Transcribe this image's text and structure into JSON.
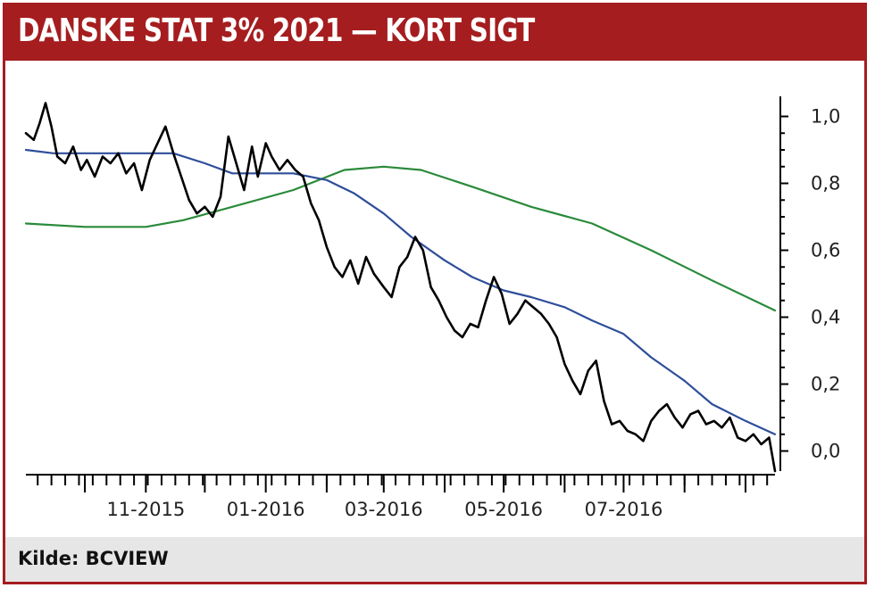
{
  "title": "DANSKE STAT 3% 2021 — KORT SIGT",
  "source": "Kilde: BCVIEW",
  "colors": {
    "brand": "#a51d1f",
    "price": "#000000",
    "ma_short": "#2e4e9a",
    "ma_long": "#2a8a3a"
  },
  "chart_data": {
    "type": "line",
    "title": "DANSKE STAT 3% 2021 — KORT SIGT",
    "xlabel": "",
    "ylabel": "",
    "x_ticks": [
      "11-2015",
      "01-2016",
      "03-2016",
      "05-2016",
      "07-2016"
    ],
    "y_ticks": [
      "1,0",
      "0,8",
      "0,6",
      "0,4",
      "0,2",
      "0,0"
    ],
    "x_range": [
      "2015-09-01",
      "2016-09-16"
    ],
    "ylim": [
      -0.06,
      1.06
    ],
    "grid": false,
    "legend": "none",
    "y_axis_position": "right",
    "series": [
      {
        "color": "#000000",
        "x": [
          "2015-09-01",
          "2015-09-05",
          "2015-09-08",
          "2015-09-11",
          "2015-09-14",
          "2015-09-17",
          "2015-09-21",
          "2015-09-25",
          "2015-09-29",
          "2015-10-02",
          "2015-10-06",
          "2015-10-10",
          "2015-10-14",
          "2015-10-18",
          "2015-10-22",
          "2015-10-26",
          "2015-10-30",
          "2015-11-03",
          "2015-11-07",
          "2015-11-11",
          "2015-11-15",
          "2015-11-19",
          "2015-11-23",
          "2015-11-27",
          "2015-12-01",
          "2015-12-05",
          "2015-12-09",
          "2015-12-13",
          "2015-12-17",
          "2015-12-21",
          "2015-12-25",
          "2015-12-28",
          "2016-01-01",
          "2016-01-04",
          "2016-01-08",
          "2016-01-12",
          "2016-01-16",
          "2016-01-20",
          "2016-01-24",
          "2016-01-28",
          "2016-02-01",
          "2016-02-05",
          "2016-02-09",
          "2016-02-13",
          "2016-02-17",
          "2016-02-21",
          "2016-02-25",
          "2016-03-01",
          "2016-03-05",
          "2016-03-09",
          "2016-03-13",
          "2016-03-17",
          "2016-03-21",
          "2016-03-25",
          "2016-03-29",
          "2016-04-02",
          "2016-04-06",
          "2016-04-10",
          "2016-04-14",
          "2016-04-18",
          "2016-04-22",
          "2016-04-26",
          "2016-04-30",
          "2016-05-04",
          "2016-05-08",
          "2016-05-12",
          "2016-05-16",
          "2016-05-20",
          "2016-05-24",
          "2016-05-28",
          "2016-06-01",
          "2016-06-05",
          "2016-06-09",
          "2016-06-13",
          "2016-06-17",
          "2016-06-21",
          "2016-06-25",
          "2016-06-29",
          "2016-07-03",
          "2016-07-07",
          "2016-07-11",
          "2016-07-15",
          "2016-07-19",
          "2016-07-23",
          "2016-07-27",
          "2016-07-31",
          "2016-08-04",
          "2016-08-08",
          "2016-08-12",
          "2016-08-16",
          "2016-08-20",
          "2016-08-24",
          "2016-08-28",
          "2016-09-01",
          "2016-09-05",
          "2016-09-09",
          "2016-09-13",
          "2016-09-16"
        ],
        "values": [
          0.95,
          0.93,
          0.98,
          1.04,
          0.97,
          0.88,
          0.86,
          0.91,
          0.84,
          0.87,
          0.82,
          0.88,
          0.86,
          0.89,
          0.83,
          0.86,
          0.78,
          0.87,
          0.92,
          0.97,
          0.89,
          0.82,
          0.75,
          0.71,
          0.73,
          0.7,
          0.76,
          0.94,
          0.86,
          0.78,
          0.91,
          0.82,
          0.92,
          0.88,
          0.84,
          0.87,
          0.84,
          0.82,
          0.74,
          0.69,
          0.61,
          0.55,
          0.52,
          0.57,
          0.5,
          0.58,
          0.53,
          0.49,
          0.46,
          0.55,
          0.58,
          0.64,
          0.6,
          0.49,
          0.45,
          0.4,
          0.36,
          0.34,
          0.38,
          0.37,
          0.45,
          0.52,
          0.47,
          0.38,
          0.41,
          0.45,
          0.43,
          0.41,
          0.38,
          0.34,
          0.26,
          0.21,
          0.17,
          0.24,
          0.27,
          0.15,
          0.08,
          0.09,
          0.06,
          0.05,
          0.03,
          0.09,
          0.12,
          0.14,
          0.1,
          0.07,
          0.11,
          0.12,
          0.08,
          0.09,
          0.07,
          0.1,
          0.04,
          0.03,
          0.05,
          0.02,
          0.04,
          -0.06
        ]
      },
      {
        "color": "#2e4e9a",
        "x": [
          "2015-09-01",
          "2015-09-15",
          "2015-10-01",
          "2015-10-15",
          "2015-11-01",
          "2015-11-15",
          "2015-12-01",
          "2015-12-15",
          "2016-01-01",
          "2016-01-15",
          "2016-02-01",
          "2016-02-15",
          "2016-03-01",
          "2016-03-15",
          "2016-04-01",
          "2016-04-15",
          "2016-05-01",
          "2016-05-15",
          "2016-06-01",
          "2016-06-15",
          "2016-07-01",
          "2016-07-15",
          "2016-08-01",
          "2016-08-15",
          "2016-09-01",
          "2016-09-16"
        ],
        "values": [
          0.9,
          0.89,
          0.89,
          0.89,
          0.89,
          0.89,
          0.86,
          0.83,
          0.83,
          0.83,
          0.81,
          0.77,
          0.71,
          0.64,
          0.57,
          0.52,
          0.48,
          0.46,
          0.43,
          0.39,
          0.35,
          0.28,
          0.21,
          0.14,
          0.09,
          0.05
        ]
      },
      {
        "color": "#2a8a3a",
        "x": [
          "2015-09-01",
          "2015-10-01",
          "2015-11-01",
          "2015-11-20",
          "2015-12-15",
          "2016-01-15",
          "2016-02-10",
          "2016-03-01",
          "2016-03-20",
          "2016-04-15",
          "2016-05-15",
          "2016-06-15",
          "2016-07-15",
          "2016-08-15",
          "2016-09-16"
        ],
        "values": [
          0.68,
          0.67,
          0.67,
          0.69,
          0.73,
          0.78,
          0.84,
          0.85,
          0.84,
          0.79,
          0.73,
          0.68,
          0.6,
          0.51,
          0.42
        ]
      }
    ]
  }
}
